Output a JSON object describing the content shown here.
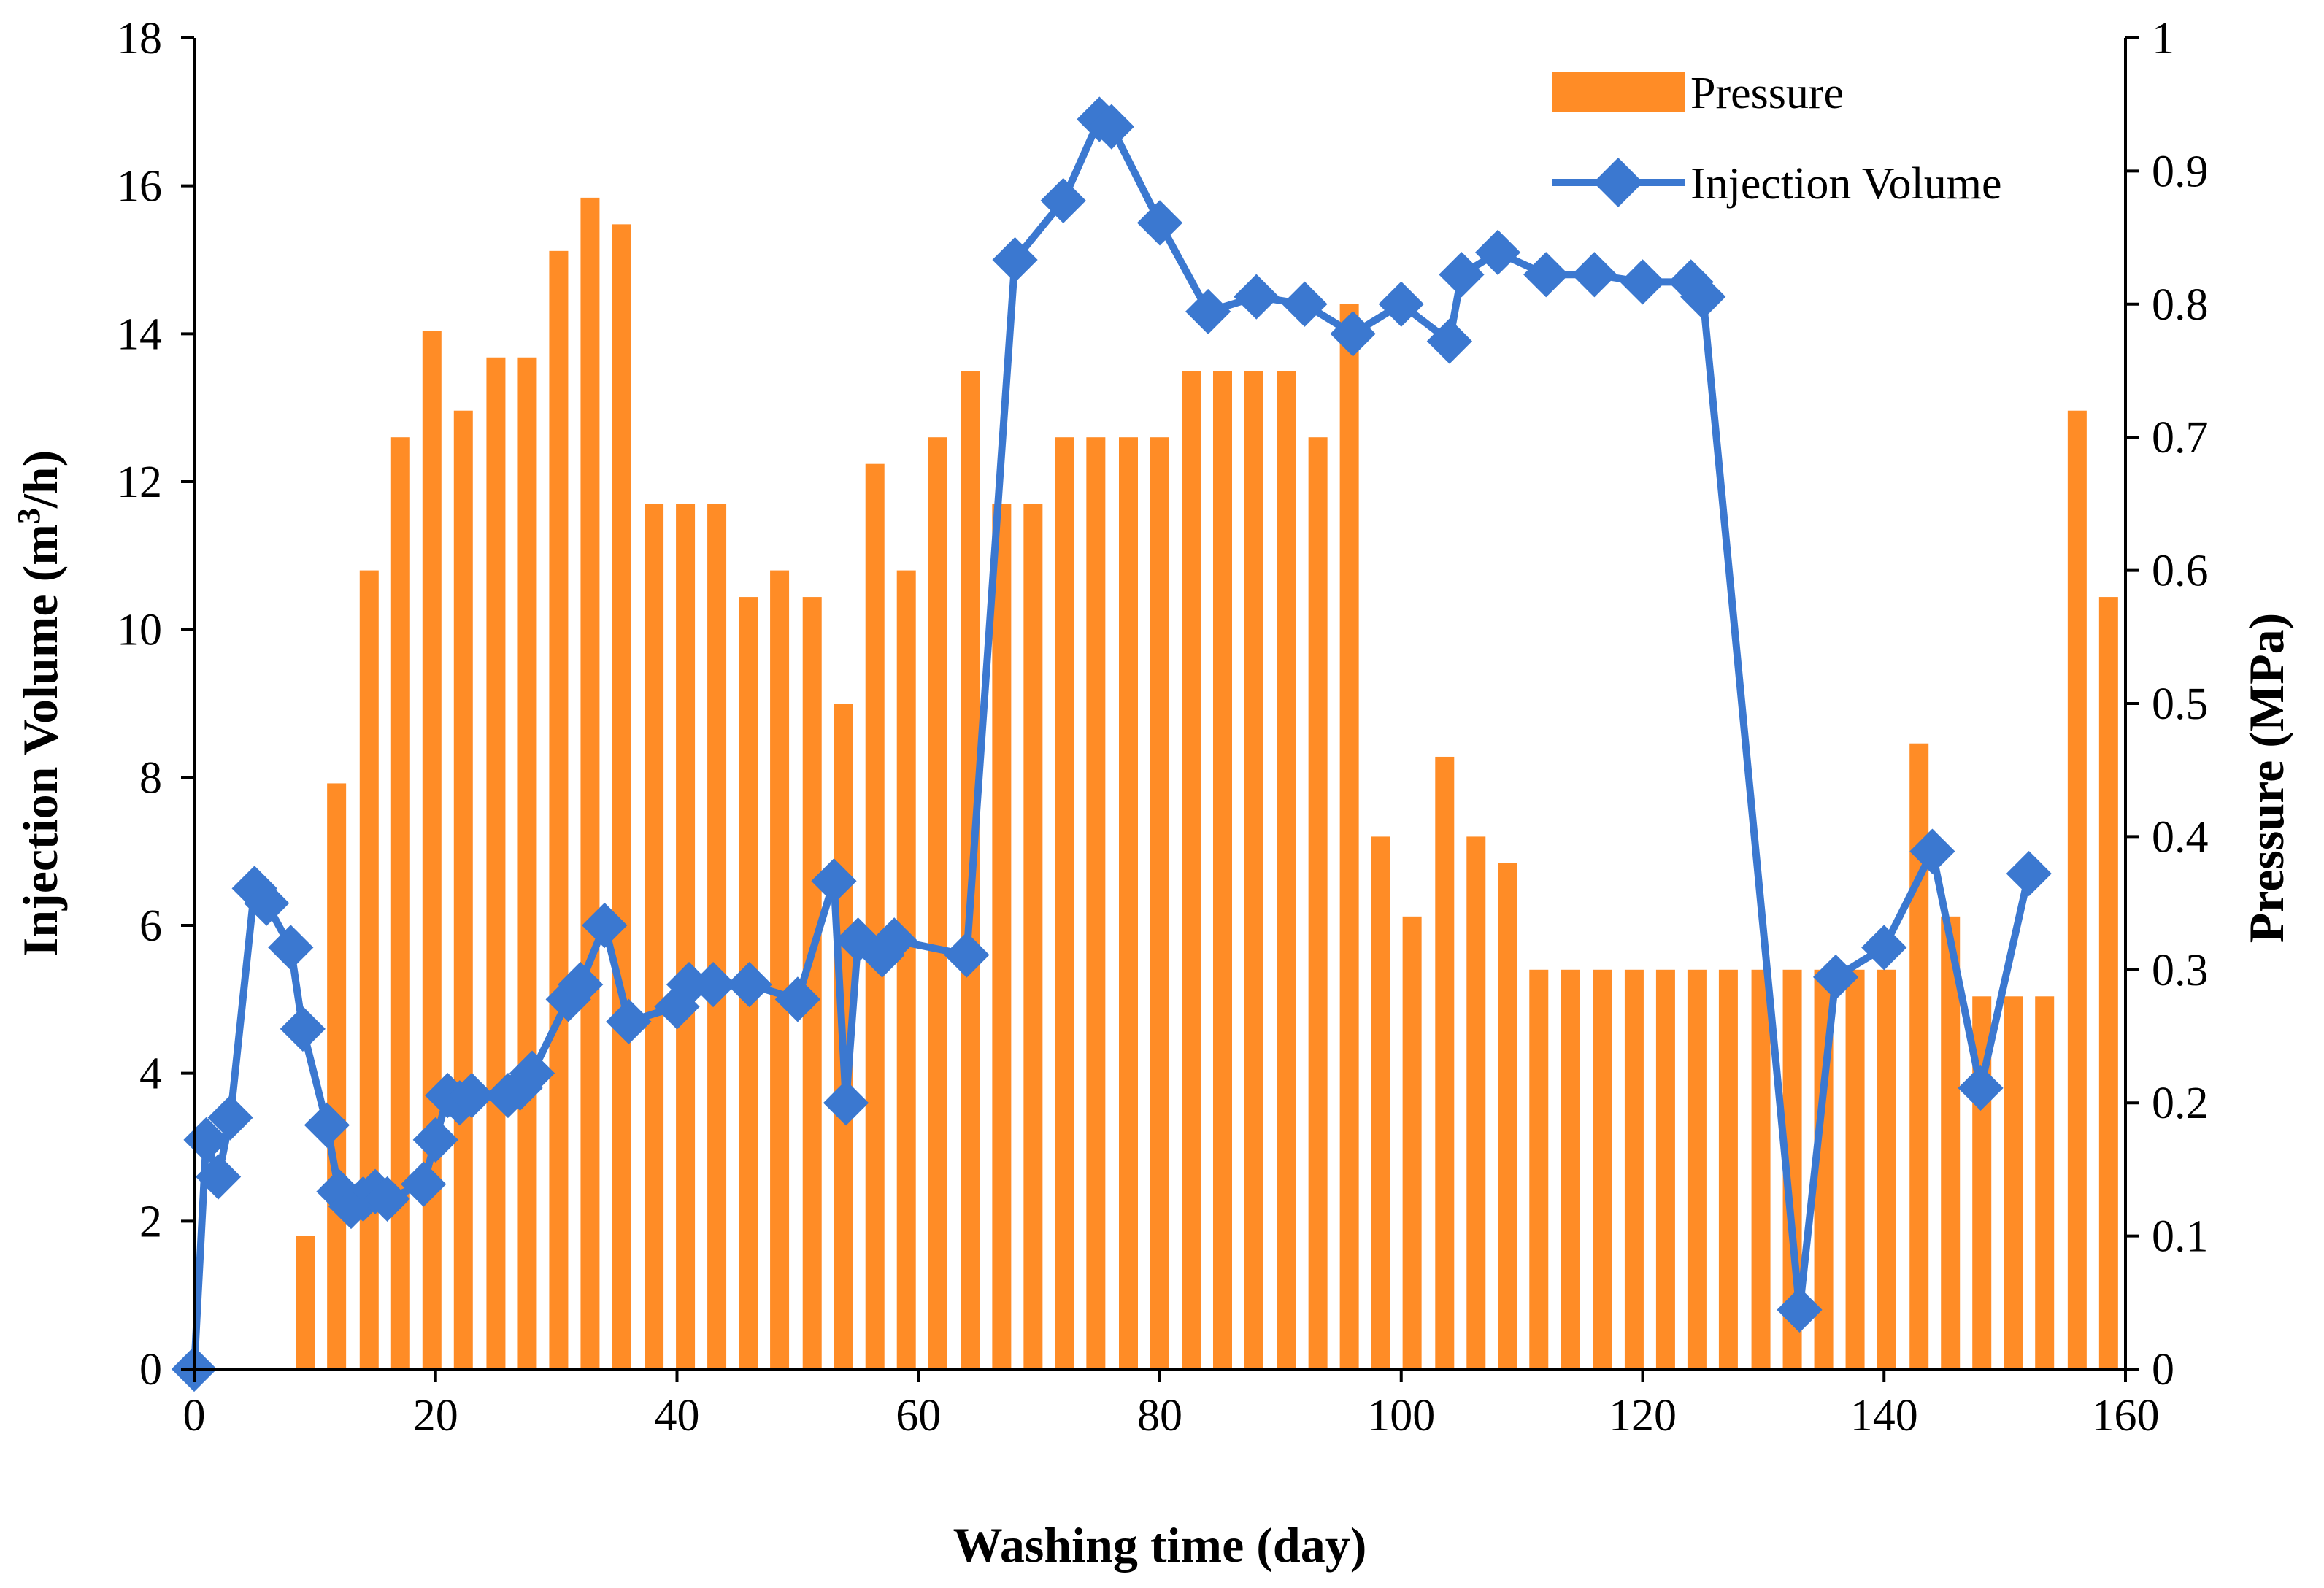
{
  "chart_data": {
    "type": "bar+line",
    "title": "",
    "xlabel": "Washing time (day)",
    "ylabel_left": "Injection Volume (m³/h)",
    "ylabel_left_parts": {
      "main": "Injection Volume (m",
      "sup": "3",
      "end": "/h)"
    },
    "ylabel_right": "Pressure (MPa)",
    "xlim": [
      0,
      160
    ],
    "ylim_left": [
      0,
      18
    ],
    "ylim_right": [
      0,
      1
    ],
    "x_ticks": [
      "0",
      "20",
      "40",
      "60",
      "80",
      "100",
      "120",
      "140",
      "160"
    ],
    "y_left_ticks": [
      "0",
      "2",
      "4",
      "6",
      "8",
      "10",
      "12",
      "14",
      "16",
      "18"
    ],
    "y_right_ticks": [
      "0",
      "0.1",
      "0.2",
      "0.3",
      "0.4",
      "0.5",
      "0.6",
      "0.7",
      "0.8",
      "0.9",
      "1"
    ],
    "legend": {
      "position": "top-right",
      "bar_label": "Pressure",
      "line_label": "Injection Volume"
    },
    "colors": {
      "bar": "#FF8C26",
      "line": "#3B78D0"
    },
    "series": [
      {
        "name": "Pressure",
        "axis": "right",
        "kind": "bar",
        "x": [
          9.2,
          11.8,
          14.5,
          17.1,
          19.7,
          22.3,
          25.0,
          27.6,
          30.2,
          32.8,
          35.4,
          38.1,
          40.7,
          43.3,
          45.9,
          48.5,
          51.2,
          53.8,
          56.4,
          59.0,
          61.6,
          64.3,
          66.9,
          69.5,
          72.1,
          74.7,
          77.4,
          80.0,
          82.6,
          85.2,
          87.8,
          90.5,
          93.1,
          95.7,
          98.3,
          100.9,
          103.6,
          106.2,
          108.8,
          111.4,
          114.0,
          116.7,
          119.3,
          121.9,
          124.5,
          127.1,
          129.8,
          132.4,
          135.0,
          137.6,
          140.2,
          142.9,
          145.5,
          148.1,
          150.7,
          153.3,
          156.0,
          158.6
        ],
        "values": [
          0.1,
          0.44,
          0.6,
          0.7,
          0.78,
          0.72,
          0.76,
          0.76,
          0.84,
          0.88,
          0.86,
          0.65,
          0.65,
          0.65,
          0.58,
          0.6,
          0.58,
          0.5,
          0.68,
          0.6,
          0.7,
          0.75,
          0.65,
          0.65,
          0.7,
          0.7,
          0.7,
          0.7,
          0.75,
          0.75,
          0.75,
          0.75,
          0.7,
          0.8,
          0.4,
          0.34,
          0.46,
          0.4,
          0.38,
          0.3,
          0.3,
          0.3,
          0.3,
          0.3,
          0.3,
          0.3,
          0.3,
          0.3,
          0.3,
          0.3,
          0.3,
          0.47,
          0.34,
          0.28,
          0.28,
          0.28,
          0.72,
          0.58
        ]
      },
      {
        "name": "Injection Volume",
        "axis": "left",
        "kind": "line",
        "x": [
          0,
          1,
          2,
          3,
          5,
          6,
          8,
          9,
          11,
          12,
          13,
          14,
          15,
          16,
          19,
          20,
          21,
          22,
          23,
          26,
          27,
          28,
          31,
          32,
          34,
          36,
          40,
          41,
          43,
          46,
          50,
          53,
          54,
          55,
          57,
          58,
          64,
          68,
          72,
          75,
          76,
          80,
          84,
          88,
          92,
          96,
          100,
          104,
          105,
          108,
          112,
          116,
          120,
          124,
          125,
          133,
          136,
          140,
          144,
          148,
          152
        ],
        "values": [
          0.0,
          3.1,
          2.6,
          3.4,
          6.5,
          6.3,
          5.7,
          4.6,
          3.3,
          2.4,
          2.2,
          2.3,
          2.4,
          2.3,
          2.5,
          3.1,
          3.7,
          3.6,
          3.7,
          3.7,
          3.8,
          4.0,
          5.0,
          5.2,
          6.0,
          4.7,
          4.9,
          5.2,
          5.2,
          5.2,
          5.0,
          6.6,
          3.6,
          5.8,
          5.6,
          5.8,
          5.6,
          15.0,
          15.8,
          16.9,
          16.8,
          15.5,
          14.3,
          14.5,
          14.4,
          14.0,
          14.4,
          13.9,
          14.8,
          15.1,
          14.8,
          14.8,
          14.7,
          14.7,
          14.5,
          0.8,
          5.3,
          5.7,
          7.0,
          3.8,
          6.7
        ]
      }
    ]
  }
}
